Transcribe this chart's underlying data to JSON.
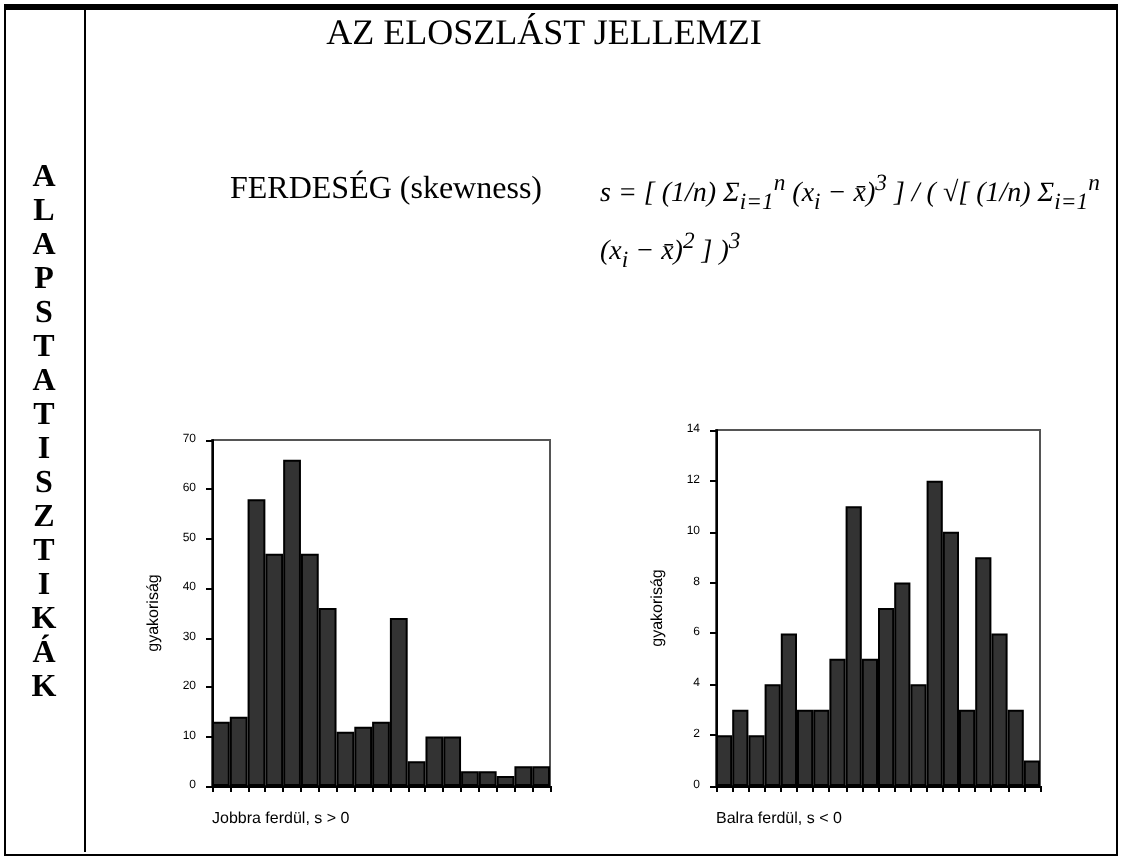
{
  "chart_data": [
    {
      "type": "bar",
      "title": "AZ ELOSZLÁST JELLEMZI",
      "annotations": [
        "ALAPSTATISZTIKÁK",
        "FERDESÉG (skewness)",
        "s = [ (1/n) Σ$_{i=1}$$^{n}$ (x$_{i}$ − x̄)$^{3}$ ] / ( √[ (1/n) Σ$_{i=1}$$^{n}$ (x$_{i}$ − x̄)$^{2}$ ] )$^{3}$"
      ],
      "xlabel": "Jobbra ferdül, s > 0",
      "ylabel": "gyakoriság",
      "categories": [
        null,
        null,
        null,
        null,
        null,
        null,
        null,
        null,
        null,
        null,
        null,
        null,
        null,
        null,
        null,
        null,
        null,
        null,
        null
      ],
      "values": [
        13,
        14,
        58,
        47,
        66,
        47,
        36,
        11,
        12,
        13,
        34,
        5,
        10,
        10,
        3,
        3,
        2,
        4,
        4
      ],
      "color": "#333333",
      "ylim": [
        0,
        70
      ],
      "yticks": [
        0,
        10,
        20,
        30,
        40,
        50,
        60,
        70
      ],
      "grid": false
    },
    {
      "type": "bar",
      "xlabel": "Balra ferdül, s < 0",
      "ylabel": "gyakoriság",
      "categories": [
        null,
        null,
        null,
        null,
        null,
        null,
        null,
        null,
        null,
        null,
        null,
        null,
        null,
        null,
        null,
        null,
        null,
        null,
        null,
        null
      ],
      "values": [
        2,
        3,
        2,
        4,
        6,
        3,
        3,
        5,
        11,
        5,
        7,
        8,
        4,
        12,
        10,
        3,
        9,
        6,
        3,
        1
      ],
      "color": "#333333",
      "ylim": [
        0,
        14
      ],
      "yticks": [
        0,
        2,
        4,
        6,
        8,
        10,
        12,
        14
      ],
      "grid": false
    }
  ]
}
